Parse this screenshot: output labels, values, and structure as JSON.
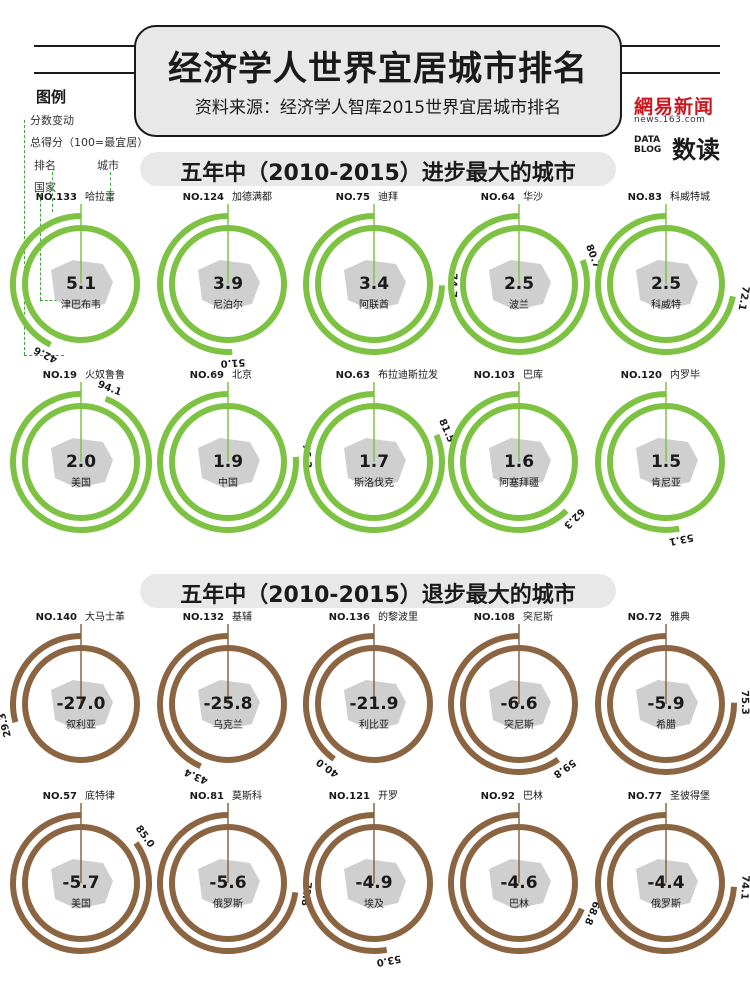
{
  "header": {
    "title": "经济学人世界宜居城市排名",
    "source": "资料来源：经济学人智库2015世界宜居城市排名",
    "brand_main": "網易新闻",
    "brand_url": "news.163.com",
    "brand_datablog_line1": "DATA",
    "brand_datablog_line2": "BLOG",
    "brand_sub": "数读"
  },
  "legend": {
    "title": "图例",
    "score_change": "分数变动",
    "total_score": "总得分（100=最宜居）",
    "rank": "排名",
    "city": "城市",
    "country": "国家"
  },
  "sections": {
    "improved_title": "五年中（2010-2015）进步最大的城市",
    "declined_title": "五年中（2010-2015）退步最大的城市"
  },
  "colors": {
    "improved": "#7dc242",
    "declined": "#8b6542",
    "shape": "#cfcfcf",
    "text": "#1a1a1a"
  },
  "chart_data": [
    {
      "type": "radial",
      "title": "五年中（2010-2015）进步最大的城市",
      "max_score": 100,
      "cities": [
        {
          "rank": "NO.133",
          "city": "哈拉雷",
          "country": "津巴布韦",
          "change": "5.1",
          "score": "42.6"
        },
        {
          "rank": "NO.124",
          "city": "加德满都",
          "country": "尼泊尔",
          "change": "3.9",
          "score": "51.0"
        },
        {
          "rank": "NO.75",
          "city": "迪拜",
          "country": "阿联酋",
          "change": "3.4",
          "score": "74.7"
        },
        {
          "rank": "NO.64",
          "city": "华沙",
          "country": "波兰",
          "change": "2.5",
          "score": "80.7"
        },
        {
          "rank": "NO.83",
          "city": "科威特城",
          "country": "科威特",
          "change": "2.5",
          "score": "72.1"
        },
        {
          "rank": "NO.19",
          "city": "火奴鲁鲁",
          "country": "美国",
          "change": "2.0",
          "score": "94.1"
        },
        {
          "rank": "NO.69",
          "city": "北京",
          "country": "中国",
          "change": "1.9",
          "score": "76.2"
        },
        {
          "rank": "NO.63",
          "city": "布拉迪斯拉发",
          "country": "斯洛伐克",
          "change": "1.7",
          "score": "81.5"
        },
        {
          "rank": "NO.103",
          "city": "巴库",
          "country": "阿塞拜疆",
          "change": "1.6",
          "score": "62.3"
        },
        {
          "rank": "NO.120",
          "city": "内罗毕",
          "country": "肯尼亚",
          "change": "1.5",
          "score": "53.1"
        }
      ]
    },
    {
      "type": "radial",
      "title": "五年中（2010-2015）退步最大的城市",
      "max_score": 100,
      "cities": [
        {
          "rank": "NO.140",
          "city": "大马士革",
          "country": "叙利亚",
          "change": "-27.0",
          "score": "29.3"
        },
        {
          "rank": "NO.132",
          "city": "基辅",
          "country": "乌克兰",
          "change": "-25.8",
          "score": "43.4"
        },
        {
          "rank": "NO.136",
          "city": "的黎波里",
          "country": "利比亚",
          "change": "-21.9",
          "score": "40.0"
        },
        {
          "rank": "NO.108",
          "city": "突尼斯",
          "country": "突尼斯",
          "change": "-6.6",
          "score": "59.8"
        },
        {
          "rank": "NO.72",
          "city": "雅典",
          "country": "希腊",
          "change": "-5.9",
          "score": "75.3"
        },
        {
          "rank": "NO.57",
          "city": "底特律",
          "country": "美国",
          "change": "-5.7",
          "score": "85.0"
        },
        {
          "rank": "NO.81",
          "city": "莫斯科",
          "country": "俄罗斯",
          "change": "-5.6",
          "score": "72.8"
        },
        {
          "rank": "NO.121",
          "city": "开罗",
          "country": "埃及",
          "change": "-4.9",
          "score": "53.0"
        },
        {
          "rank": "NO.92",
          "city": "巴林",
          "country": "巴林",
          "change": "-4.6",
          "score": "68.8"
        },
        {
          "rank": "NO.77",
          "city": "圣彼得堡",
          "country": "俄罗斯",
          "change": "-4.4",
          "score": "74.1"
        }
      ]
    }
  ]
}
